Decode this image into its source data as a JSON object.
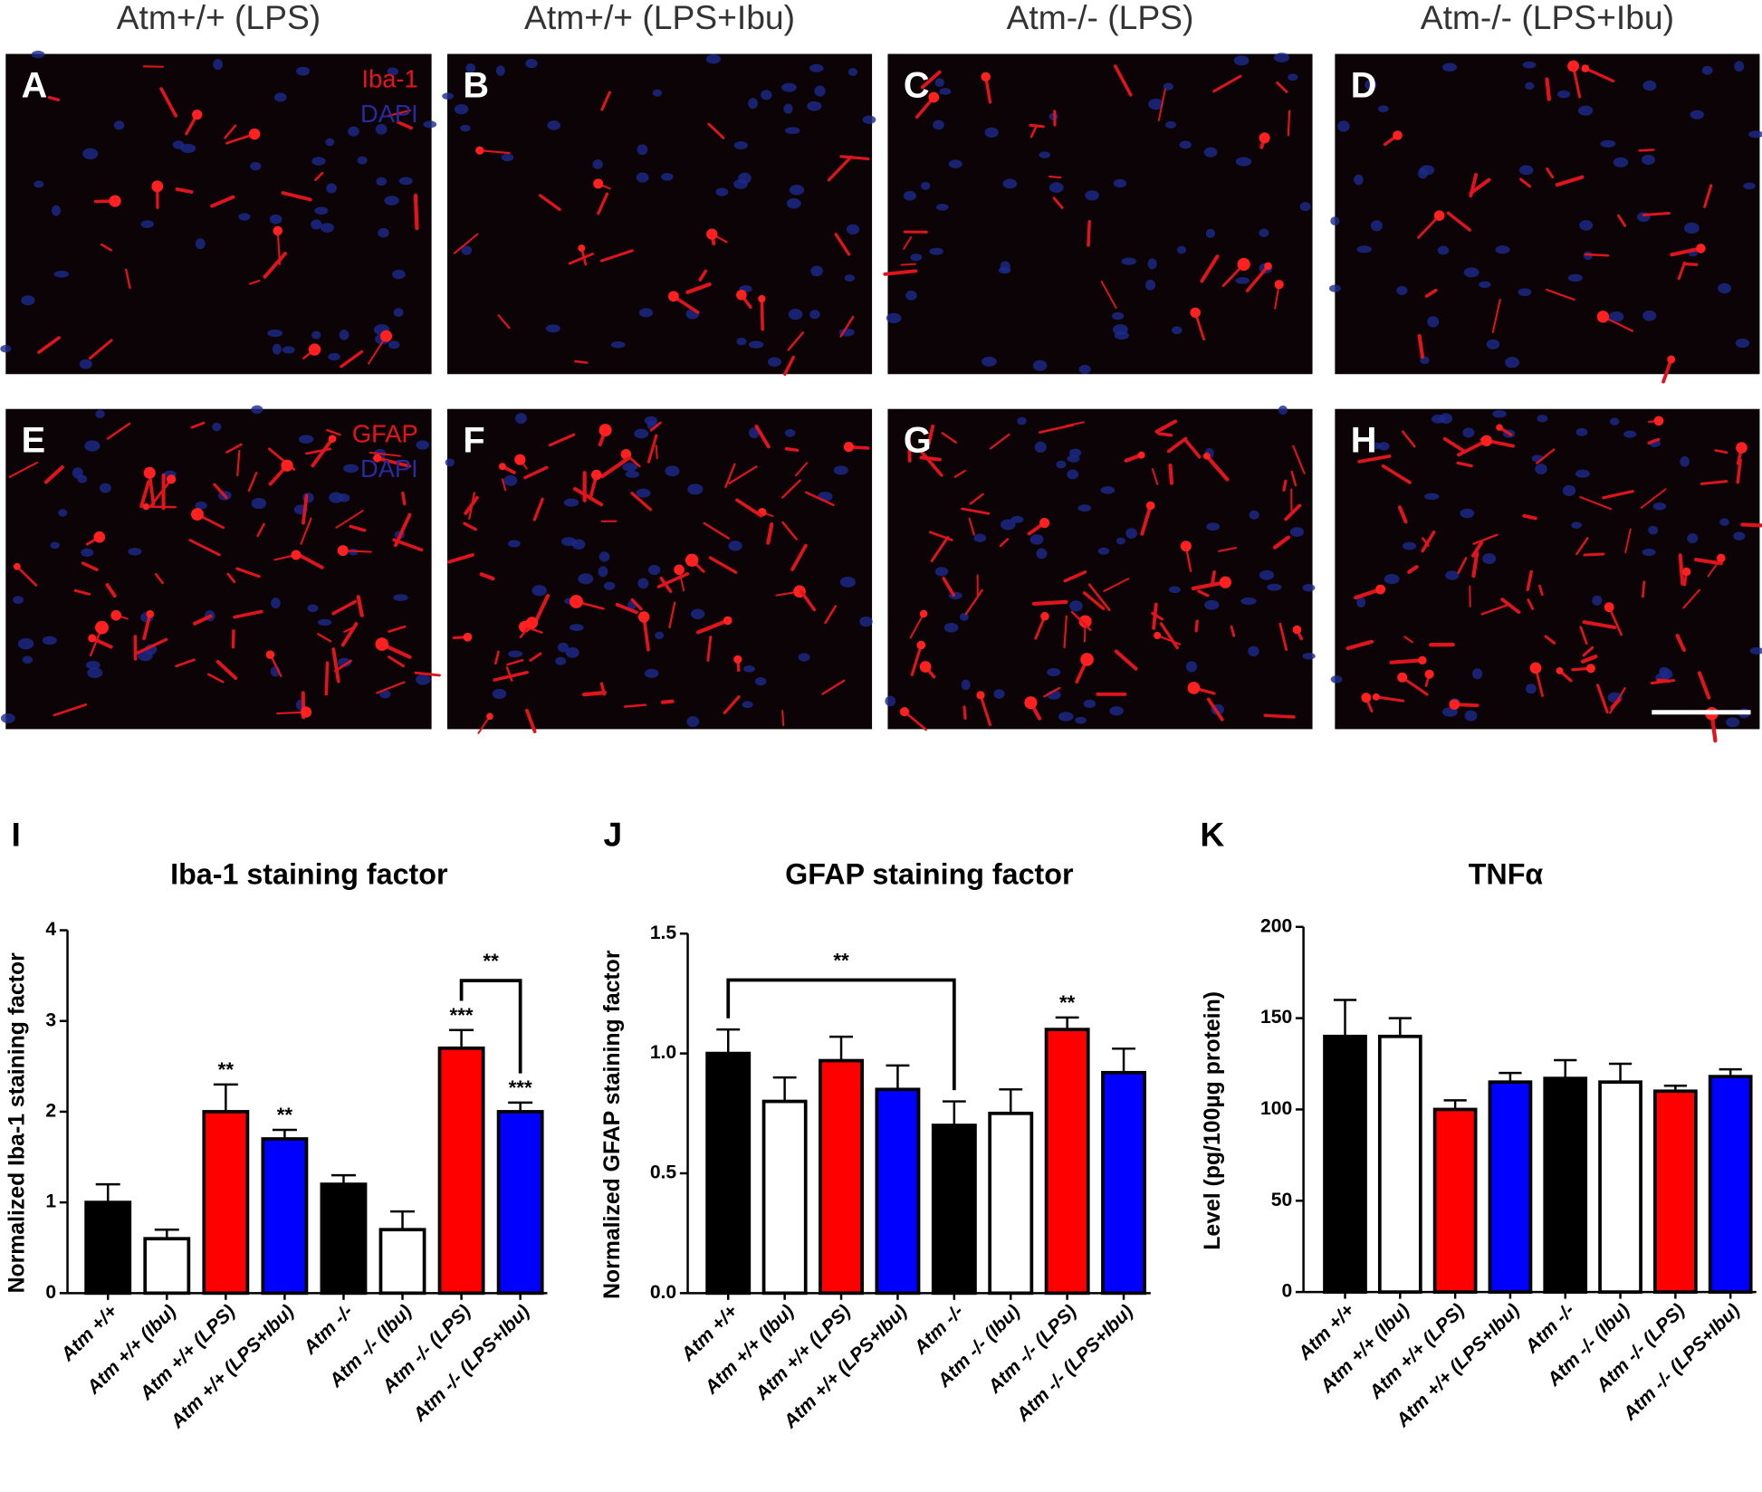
{
  "micrographs": {
    "column_titles": [
      "Atm+/+ (LPS)",
      "Atm+/+ (LPS+Ibu)",
      "Atm-/- (LPS)",
      "Atm-/- (LPS+Ibu)"
    ],
    "panel_letters": [
      "A",
      "B",
      "C",
      "D",
      "E",
      "F",
      "G",
      "H"
    ],
    "stain_labels": [
      [
        "Iba-1",
        "DAPI"
      ],
      [
        "GFAP",
        "DAPI"
      ]
    ]
  },
  "chart_data": [
    {
      "type": "bar",
      "panel": "I",
      "title": "Iba-1 staining factor",
      "y_label": "Normalized Iba-1 staining factor",
      "categories": [
        "Atm +/+",
        "Atm +/+ (Ibu)",
        "Atm +/+ (LPS)",
        "Atm +/+ (LPS+Ibu)",
        "Atm -/-",
        "Atm -/- (Ibu)",
        "Atm -/- (LPS)",
        "Atm -/- (LPS+Ibu)"
      ],
      "values": [
        1.0,
        0.6,
        2.0,
        1.7,
        1.2,
        0.7,
        2.7,
        2.0
      ],
      "errors": [
        0.2,
        0.1,
        0.3,
        0.1,
        0.1,
        0.2,
        0.2,
        0.1
      ],
      "colors": [
        "#000000",
        "#ffffff",
        "#ff0000",
        "#0000ff",
        "#000000",
        "#ffffff",
        "#ff0000",
        "#0000ff"
      ],
      "significance": [
        null,
        null,
        "**",
        "**",
        null,
        null,
        "***",
        "***"
      ],
      "bracket": {
        "text": "**",
        "between": [
          6,
          7
        ]
      },
      "ylim": [
        0,
        4
      ],
      "yticks": [
        0,
        1,
        2,
        3,
        4
      ]
    },
    {
      "type": "bar",
      "panel": "J",
      "title": "GFAP staining factor",
      "y_label": "Normalized GFAP staining factor",
      "categories": [
        "Atm +/+",
        "Atm +/+ (Ibu)",
        "Atm +/+ (LPS)",
        "Atm +/+ (LPS+Ibu)",
        "Atm -/-",
        "Atm -/- (Ibu)",
        "Atm -/- (LPS)",
        "Atm -/- (LPS+Ibu)"
      ],
      "values": [
        1.0,
        0.8,
        0.97,
        0.85,
        0.7,
        0.75,
        1.1,
        0.92
      ],
      "errors": [
        0.1,
        0.1,
        0.1,
        0.1,
        0.1,
        0.1,
        0.05,
        0.1
      ],
      "colors": [
        "#000000",
        "#ffffff",
        "#ff0000",
        "#0000ff",
        "#000000",
        "#ffffff",
        "#ff0000",
        "#0000ff"
      ],
      "significance": [
        null,
        null,
        null,
        null,
        null,
        null,
        "**",
        null
      ],
      "bracket": {
        "text": "**",
        "between": [
          0,
          4
        ]
      },
      "ylim": [
        0,
        1.5
      ],
      "yticks": [
        {
          "value": 0,
          "label": "0.0"
        },
        {
          "value": 0.5,
          "label": "0.5"
        },
        {
          "value": 1,
          "label": "1.0"
        },
        {
          "value": 1.5,
          "label": "1.5"
        }
      ]
    },
    {
      "type": "bar",
      "panel": "K",
      "title": "TNFα",
      "y_label": "Level (pg/100µg protein)",
      "categories": [
        "Atm +/+",
        "Atm +/+ (Ibu)",
        "Atm +/+ (LPS)",
        "Atm +/+ (LPS+Ibu)",
        "Atm -/-",
        "Atm -/- (Ibu)",
        "Atm -/- (LPS)",
        "Atm -/- (LPS+Ibu)"
      ],
      "values": [
        140,
        140,
        100,
        115,
        117,
        115,
        110,
        118
      ],
      "errors": [
        20,
        10,
        5,
        5,
        10,
        10,
        3,
        4
      ],
      "colors": [
        "#000000",
        "#ffffff",
        "#ff0000",
        "#0000ff",
        "#000000",
        "#ffffff",
        "#ff0000",
        "#0000ff"
      ],
      "ylim": [
        0,
        200
      ],
      "yticks": [
        0,
        50,
        100,
        150,
        200
      ]
    }
  ]
}
